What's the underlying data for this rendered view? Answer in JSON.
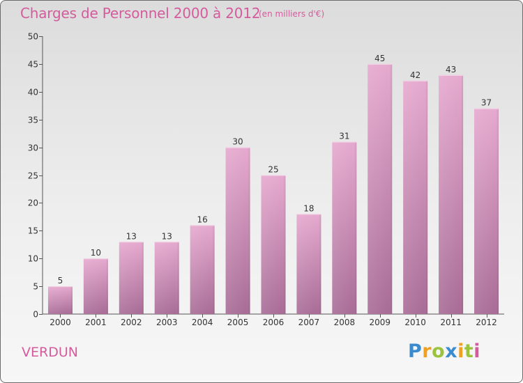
{
  "header": {
    "title": "Charges de Personnel 2000 à 2012",
    "subtitle": "(en milliers d'€)"
  },
  "commune": "VERDUN",
  "brand": {
    "letters": [
      "P",
      "r",
      "o",
      "x",
      "i",
      "t",
      "i"
    ],
    "colors": [
      "#3a8ccf",
      "#f0a020",
      "#9bc43c",
      "#3a8ccf",
      "#f0a020",
      "#9bc43c",
      "#d45c9c"
    ]
  },
  "colors": {
    "accent": "#d45c9c",
    "bar_top": "#e6a9cf",
    "bar_bottom": "#a86c96"
  },
  "chart_data": {
    "type": "bar",
    "categories": [
      "2000",
      "2001",
      "2002",
      "2003",
      "2004",
      "2005",
      "2006",
      "2007",
      "2008",
      "2009",
      "2010",
      "2011",
      "2012"
    ],
    "values": [
      5,
      10,
      13,
      13,
      16,
      30,
      25,
      18,
      31,
      45,
      42,
      43,
      37
    ],
    "title": "Charges de Personnel 2000 à 2012",
    "subtitle": "(en milliers d'€)",
    "ylim": [
      0,
      50
    ],
    "yticks": [
      0,
      5,
      10,
      15,
      20,
      25,
      30,
      35,
      40,
      45,
      50
    ],
    "grid": false,
    "data_labels": true
  }
}
